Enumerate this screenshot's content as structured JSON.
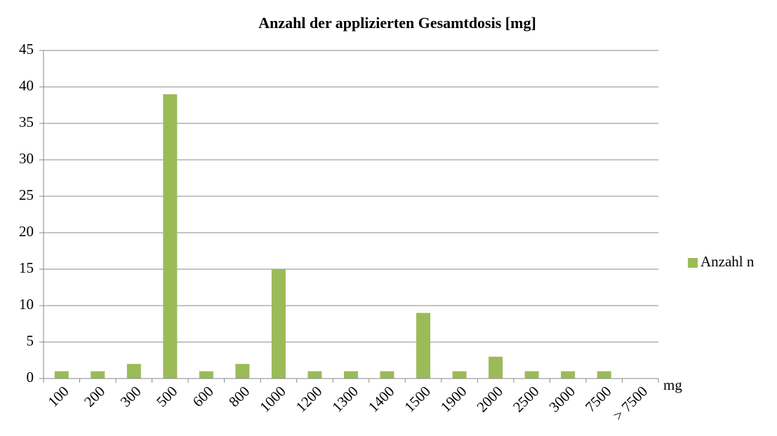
{
  "chart_data": {
    "type": "bar",
    "title": "Anzahl der applizierten Gesamtdosis [mg]",
    "x_label": "mg",
    "categories": [
      "100",
      "200",
      "300",
      "500",
      "600",
      "800",
      "1000",
      "1200",
      "1300",
      "1400",
      "1500",
      "1900",
      "2000",
      "2500",
      "3000",
      "7500",
      "> 7500"
    ],
    "series": [
      {
        "name": "Anzahl n",
        "color": "#9bbb59",
        "values": [
          1,
          1,
          2,
          39,
          1,
          2,
          15,
          1,
          1,
          1,
          9,
          1,
          3,
          1,
          1,
          1,
          0
        ]
      }
    ],
    "ylim": [
      0,
      45
    ],
    "yticks": [
      0,
      5,
      10,
      15,
      20,
      25,
      30,
      35,
      40,
      45
    ],
    "grid": true,
    "legend": "right"
  }
}
